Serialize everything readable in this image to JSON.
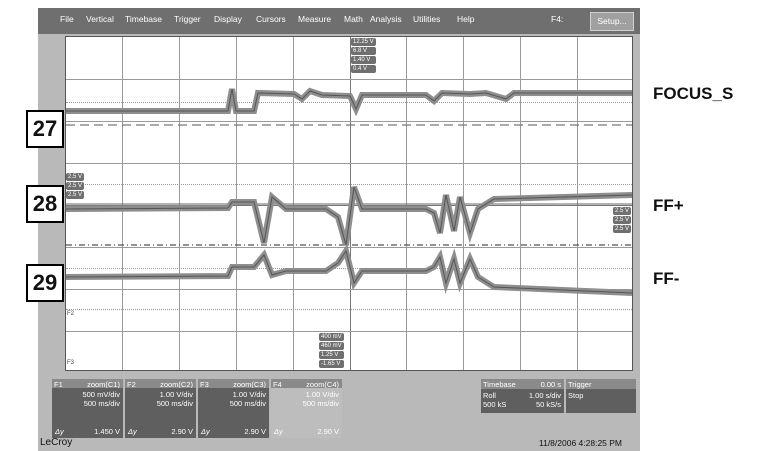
{
  "menubar": {
    "items": [
      "File",
      "Vertical",
      "Timebase",
      "Trigger",
      "Display",
      "Cursors",
      "Measure",
      "Math",
      "Analysis",
      "Utilities",
      "Help"
    ],
    "f4_label": "F4:",
    "setup_label": "Setup..."
  },
  "channels": [
    {
      "number": "27",
      "label": "FOCUS_S"
    },
    {
      "number": "28",
      "label": "FF+"
    },
    {
      "number": "29",
      "label": "FF-"
    }
  ],
  "top_readouts": [
    "12.25 V",
    "6.8 V",
    "1.40 V",
    "0.4 V"
  ],
  "bottom_readouts": [
    "400 mV",
    "460 mV",
    "1.25 V",
    "-1.65 V"
  ],
  "left_readouts": [
    "2.5 V",
    "2.5 V",
    "2.5 V"
  ],
  "right_readouts": [
    "2.5 V",
    "2.5 V",
    "2.5 V"
  ],
  "ground_markers": [
    "F2",
    "F3"
  ],
  "panels": [
    {
      "id": "F1",
      "title": "zoom(C1)",
      "line1": "500 mV/div",
      "line2": "500 ms/div",
      "dy_label": "Δy",
      "dy_value": "1.450 V"
    },
    {
      "id": "F2",
      "title": "zoom(C2)",
      "line1": "1.00 V/div",
      "line2": "500 ms/div",
      "dy_label": "Δy",
      "dy_value": "2.90 V"
    },
    {
      "id": "F3",
      "title": "zoom(C3)",
      "line1": "1.00 V/div",
      "line2": "500 ms/div",
      "dy_label": "Δy",
      "dy_value": "2.90 V"
    },
    {
      "id": "F4",
      "title": "zoom(C4)",
      "line1": "1.00 V/div",
      "line2": "500 ms/div",
      "dy_label": "Δy",
      "dy_value": "2.90 V"
    }
  ],
  "timebase": {
    "title": "Timebase",
    "value": "0.00 s",
    "mode": "Roll",
    "rate": "1.00 s/div",
    "samples": "500 kS",
    "srate": "50 kS/s"
  },
  "trigger": {
    "title": "Trigger",
    "state": "Stop"
  },
  "footer": {
    "brand": "LeCroy",
    "timestamp": "11/8/2006 4:28:25 PM"
  }
}
